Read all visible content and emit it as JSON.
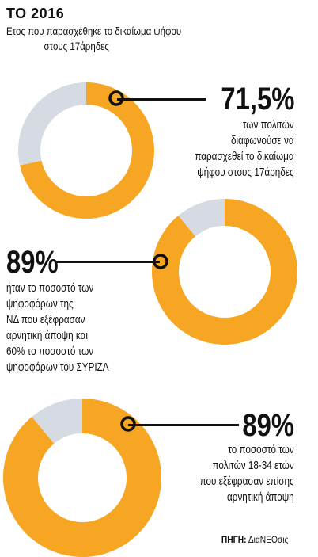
{
  "title": "ΤΟ 2016",
  "subtitle": [
    "Ετος που παρασχέθηκε το δικαίωμα ψήφου",
    "στους 17άρηδες"
  ],
  "colors": {
    "accent": "#F6A623",
    "rest": "#D5DAE3",
    "text": "#111111"
  },
  "chart_data": [
    {
      "type": "pie",
      "values": [
        71.5,
        28.5
      ],
      "value_label": "71,5%",
      "description": [
        "των πολιτών",
        "διαφωνούσε να",
        "παρασχεθεί το δικαίωμα",
        "ψήφου στους 17άρηδες"
      ]
    },
    {
      "type": "pie",
      "values": [
        89,
        11
      ],
      "value_label": "89%",
      "description": [
        "ήταν το ποσοστό των",
        "ψηφοφόρων της",
        "ΝΔ που εξέφρασαν",
        "αρνητική άποψη και",
        "60% το ποσοστό των",
        "ψηφοφόρων του ΣΥΡΙΖΑ"
      ]
    },
    {
      "type": "pie",
      "values": [
        89,
        11
      ],
      "value_label": "89%",
      "description": [
        "το ποσοστό των",
        "πολιτών 18-34 ετών",
        "που εξέφρασαν επίσης",
        "αρνητική άποψη"
      ]
    }
  ],
  "source": {
    "label": "ΠΗΓΗ:",
    "value": "ΔιαΝΕΟσις"
  }
}
